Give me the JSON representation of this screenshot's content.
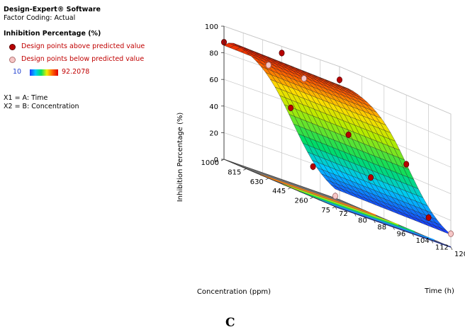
{
  "legend": {
    "software": "Design-Expert® Software",
    "coding": "Factor Coding: Actual",
    "response": "Inhibition Percentage (%)",
    "above_label": "Design points above predicted value",
    "below_label": "Design points below predicted value",
    "color_min": "10",
    "color_max": "92.2078",
    "x1": "X1 = A: Time",
    "x2": "X2 = B: Concentration"
  },
  "caption": "C",
  "colors": {
    "above": "#b80000",
    "below": "#f6c7c7",
    "floor": "#6e6e6e"
  },
  "chart_data": {
    "type": "surface3d",
    "zlabel": "Inhibition Percentage (%)",
    "xlabel": "Time (h)",
    "ylabel": "Concentration (ppm)",
    "time_ticks": [
      "72",
      "80",
      "88",
      "96",
      "104",
      "112",
      "120"
    ],
    "conc_ticks": [
      "75",
      "260",
      "445",
      "630",
      "815",
      "1000"
    ],
    "z_ticks": [
      "0",
      "20",
      "40",
      "60",
      "80",
      "100"
    ],
    "time_range": [
      72,
      120
    ],
    "conc_range": [
      75,
      1000
    ],
    "z_range": [
      0,
      100
    ],
    "surface_model": {
      "description_values": {
        "z_at_conc_75": 7,
        "z_at_conc_1000": 88,
        "peak_conc": 900,
        "z_peak": 93
      }
    },
    "contour_levels": [
      80,
      60,
      40,
      20,
      10
    ],
    "design_points": [
      {
        "time": 72,
        "conc": 1000,
        "z": 88,
        "pos": "above"
      },
      {
        "time": 72,
        "conc": 630,
        "z": 85,
        "pos": "below"
      },
      {
        "time": 96,
        "conc": 1000,
        "z": 95,
        "pos": "above"
      },
      {
        "time": 120,
        "conc": 1000,
        "z": 90,
        "pos": "above"
      },
      {
        "time": 96,
        "conc": 815,
        "z": 83,
        "pos": "below"
      },
      {
        "time": 96,
        "conc": 445,
        "z": 55,
        "pos": "above"
      },
      {
        "time": 72,
        "conc": 445,
        "z": 60,
        "pos": "above"
      },
      {
        "time": 120,
        "conc": 445,
        "z": 48,
        "pos": "above"
      },
      {
        "time": 72,
        "conc": 260,
        "z": 23,
        "pos": "above"
      },
      {
        "time": 96,
        "conc": 260,
        "z": 30,
        "pos": "above"
      },
      {
        "time": 72,
        "conc": 75,
        "z": 8,
        "pos": "below"
      },
      {
        "time": 120,
        "conc": 75,
        "z": 10,
        "pos": "below"
      },
      {
        "time": 120,
        "conc": 260,
        "z": 15,
        "pos": "above"
      }
    ]
  }
}
